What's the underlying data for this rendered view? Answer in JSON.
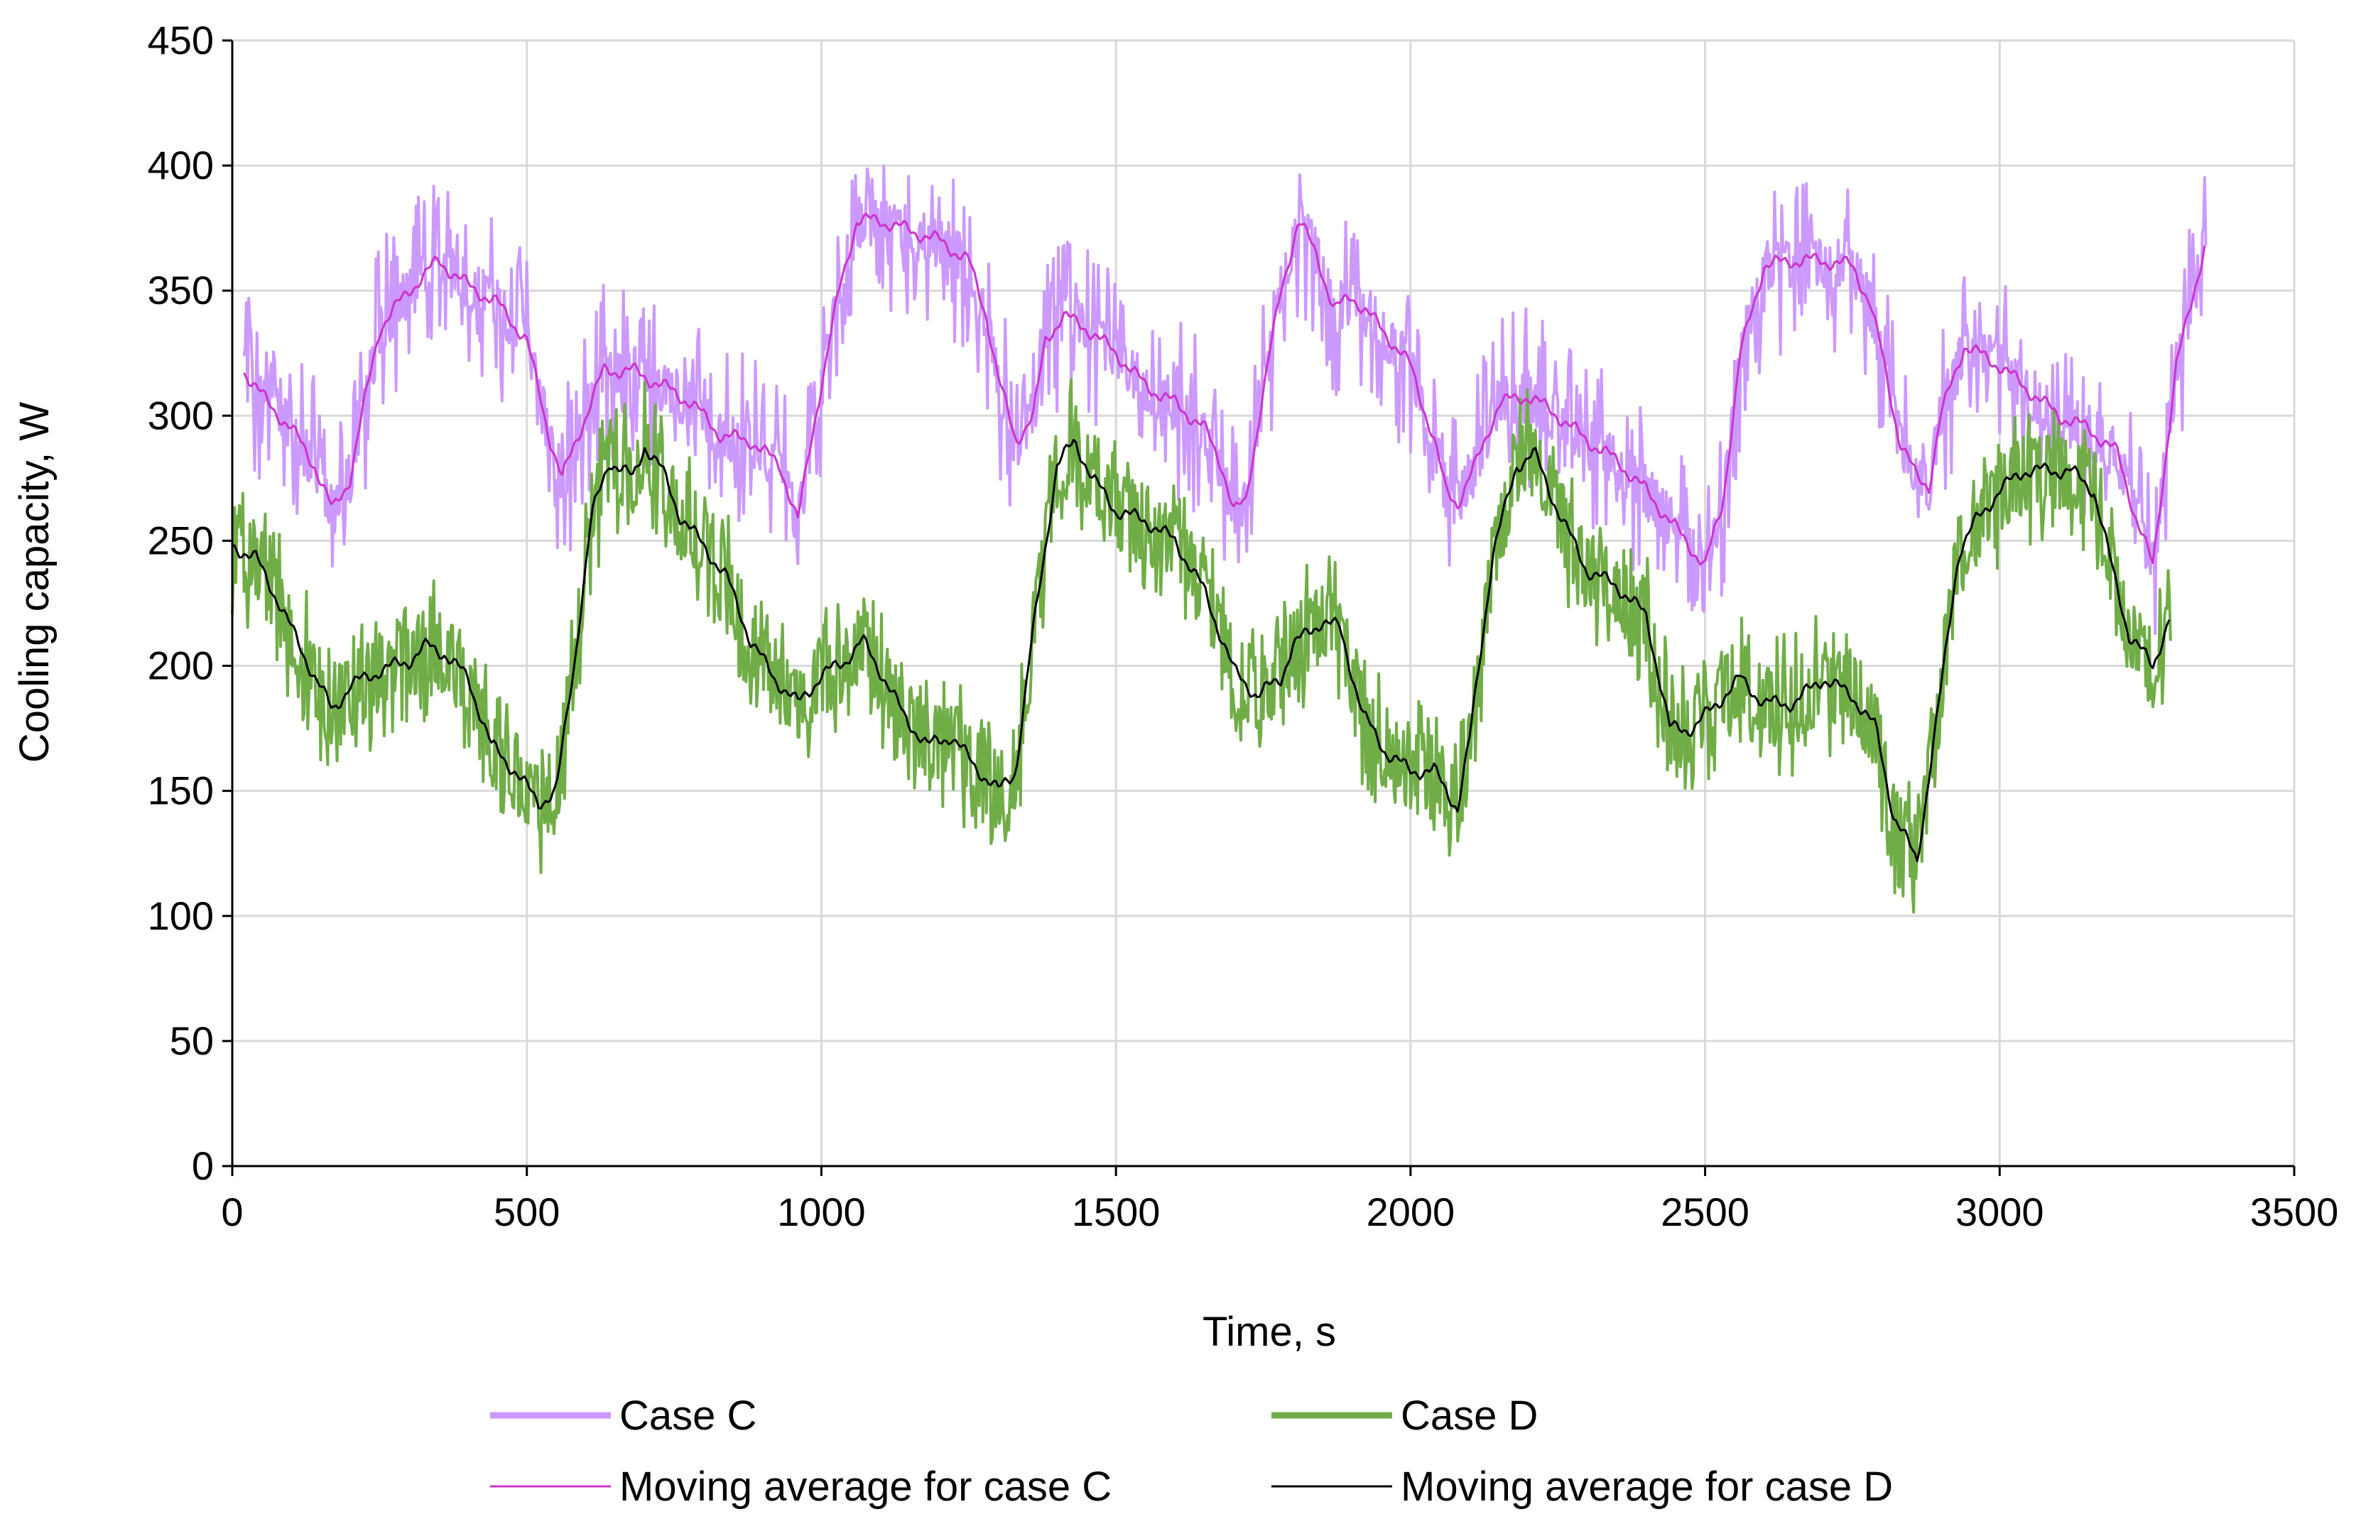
{
  "chart_data": {
    "type": "line",
    "title": "",
    "xlabel": "Time, s",
    "ylabel": "Cooling capacity, W",
    "xlim": [
      0,
      3500
    ],
    "ylim": [
      0,
      450
    ],
    "xticks": [
      0,
      500,
      1000,
      1500,
      2000,
      2500,
      3000,
      3500
    ],
    "yticks": [
      0,
      50,
      100,
      150,
      200,
      250,
      300,
      350,
      400,
      450
    ],
    "x_tick_labels": [
      "0",
      "500",
      "1000",
      "1500",
      "2000",
      "2500",
      "3000",
      "3500"
    ],
    "y_tick_labels": [
      "0",
      "50",
      "100",
      "150",
      "200",
      "250",
      "300",
      "350",
      "400",
      "450"
    ],
    "grid": true,
    "legend_position": "bottom",
    "series": [
      {
        "name": "Case C",
        "color": "#cc99ff",
        "style": "noisy-band",
        "mean": [
          [
            20,
            318
          ],
          [
            60,
            305
          ],
          [
            100,
            295
          ],
          [
            140,
            280
          ],
          [
            170,
            262
          ],
          [
            200,
            275
          ],
          [
            220,
            300
          ],
          [
            250,
            335
          ],
          [
            300,
            350
          ],
          [
            350,
            362
          ],
          [
            400,
            352
          ],
          [
            450,
            345
          ],
          [
            500,
            330
          ],
          [
            540,
            290
          ],
          [
            560,
            275
          ],
          [
            600,
            300
          ],
          [
            630,
            318
          ],
          [
            680,
            318
          ],
          [
            730,
            312
          ],
          [
            780,
            305
          ],
          [
            830,
            292
          ],
          [
            880,
            290
          ],
          [
            930,
            280
          ],
          [
            960,
            258
          ],
          [
            990,
            300
          ],
          [
            1030,
            350
          ],
          [
            1060,
            378
          ],
          [
            1100,
            378
          ],
          [
            1200,
            370
          ],
          [
            1250,
            362
          ],
          [
            1280,
            340
          ],
          [
            1300,
            315
          ],
          [
            1330,
            290
          ],
          [
            1360,
            300
          ],
          [
            1380,
            330
          ],
          [
            1410,
            340
          ],
          [
            1450,
            335
          ],
          [
            1500,
            325
          ],
          [
            1550,
            312
          ],
          [
            1600,
            305
          ],
          [
            1650,
            295
          ],
          [
            1680,
            280
          ],
          [
            1700,
            262
          ],
          [
            1720,
            265
          ],
          [
            1750,
            310
          ],
          [
            1780,
            350
          ],
          [
            1810,
            378
          ],
          [
            1840,
            365
          ],
          [
            1870,
            342
          ],
          [
            1900,
            348
          ],
          [
            1950,
            335
          ],
          [
            2000,
            320
          ],
          [
            2040,
            290
          ],
          [
            2060,
            270
          ],
          [
            2080,
            265
          ],
          [
            2110,
            280
          ],
          [
            2150,
            305
          ],
          [
            2200,
            308
          ],
          [
            2250,
            300
          ],
          [
            2300,
            290
          ],
          [
            2350,
            282
          ],
          [
            2400,
            270
          ],
          [
            2450,
            255
          ],
          [
            2500,
            240
          ],
          [
            2530,
            265
          ],
          [
            2560,
            325
          ],
          [
            2600,
            360
          ],
          [
            2650,
            362
          ],
          [
            2700,
            362
          ],
          [
            2750,
            360
          ],
          [
            2780,
            345
          ],
          [
            2800,
            325
          ],
          [
            2830,
            290
          ],
          [
            2860,
            275
          ],
          [
            2880,
            272
          ],
          [
            2900,
            300
          ],
          [
            2940,
            328
          ],
          [
            3000,
            320
          ],
          [
            3050,
            310
          ],
          [
            3100,
            300
          ],
          [
            3150,
            295
          ],
          [
            3200,
            285
          ],
          [
            3230,
            260
          ],
          [
            3260,
            240
          ],
          [
            3300,
            320
          ],
          [
            3350,
            370
          ]
        ],
        "band_low": 10,
        "band_high": 25
      },
      {
        "name": "Case D",
        "color": "#70ad47",
        "style": "noisy-band",
        "mean": [
          [
            0,
            248
          ],
          [
            40,
            243
          ],
          [
            80,
            225
          ],
          [
            120,
            205
          ],
          [
            170,
            182
          ],
          [
            200,
            192
          ],
          [
            250,
            198
          ],
          [
            300,
            202
          ],
          [
            330,
            208
          ],
          [
            360,
            205
          ],
          [
            400,
            195
          ],
          [
            440,
            168
          ],
          [
            480,
            158
          ],
          [
            520,
            145
          ],
          [
            550,
            150
          ],
          [
            580,
            200
          ],
          [
            610,
            260
          ],
          [
            640,
            282
          ],
          [
            680,
            275
          ],
          [
            700,
            288
          ],
          [
            730,
            278
          ],
          [
            760,
            260
          ],
          [
            800,
            248
          ],
          [
            840,
            235
          ],
          [
            880,
            210
          ],
          [
            920,
            195
          ],
          [
            960,
            185
          ],
          [
            1000,
            196
          ],
          [
            1040,
            202
          ],
          [
            1070,
            210
          ],
          [
            1100,
            198
          ],
          [
            1140,
            180
          ],
          [
            1180,
            168
          ],
          [
            1220,
            172
          ],
          [
            1260,
            160
          ],
          [
            1300,
            150
          ],
          [
            1330,
            158
          ],
          [
            1360,
            215
          ],
          [
            1400,
            280
          ],
          [
            1430,
            290
          ],
          [
            1460,
            275
          ],
          [
            1500,
            262
          ],
          [
            1550,
            258
          ],
          [
            1600,
            250
          ],
          [
            1650,
            230
          ],
          [
            1700,
            198
          ],
          [
            1740,
            188
          ],
          [
            1780,
            195
          ],
          [
            1800,
            208
          ],
          [
            1850,
            218
          ],
          [
            1880,
            215
          ],
          [
            1920,
            180
          ],
          [
            1960,
            165
          ],
          [
            2000,
            158
          ],
          [
            2040,
            158
          ],
          [
            2080,
            143
          ],
          [
            2100,
            170
          ],
          [
            2140,
            245
          ],
          [
            2180,
            280
          ],
          [
            2210,
            285
          ],
          [
            2250,
            262
          ],
          [
            2300,
            238
          ],
          [
            2350,
            232
          ],
          [
            2400,
            220
          ],
          [
            2440,
            175
          ],
          [
            2480,
            175
          ],
          [
            2520,
            185
          ],
          [
            2560,
            195
          ],
          [
            2600,
            185
          ],
          [
            2650,
            185
          ],
          [
            2700,
            195
          ],
          [
            2750,
            188
          ],
          [
            2790,
            175
          ],
          [
            2820,
            140
          ],
          [
            2860,
            122
          ],
          [
            2900,
            190
          ],
          [
            2930,
            245
          ],
          [
            2960,
            258
          ],
          [
            3000,
            270
          ],
          [
            3040,
            278
          ],
          [
            3080,
            278
          ],
          [
            3120,
            278
          ],
          [
            3160,
            270
          ],
          [
            3190,
            240
          ],
          [
            3220,
            212
          ],
          [
            3260,
            200
          ],
          [
            3290,
            220
          ]
        ],
        "band_low": 15,
        "band_high": 20
      },
      {
        "name": "Moving average for case C",
        "color": "#cc33cc",
        "style": "smooth-line",
        "mean_ref": "Case C"
      },
      {
        "name": "Moving average for case D",
        "color": "#000000",
        "style": "smooth-line",
        "mean_ref": "Case D"
      }
    ]
  }
}
